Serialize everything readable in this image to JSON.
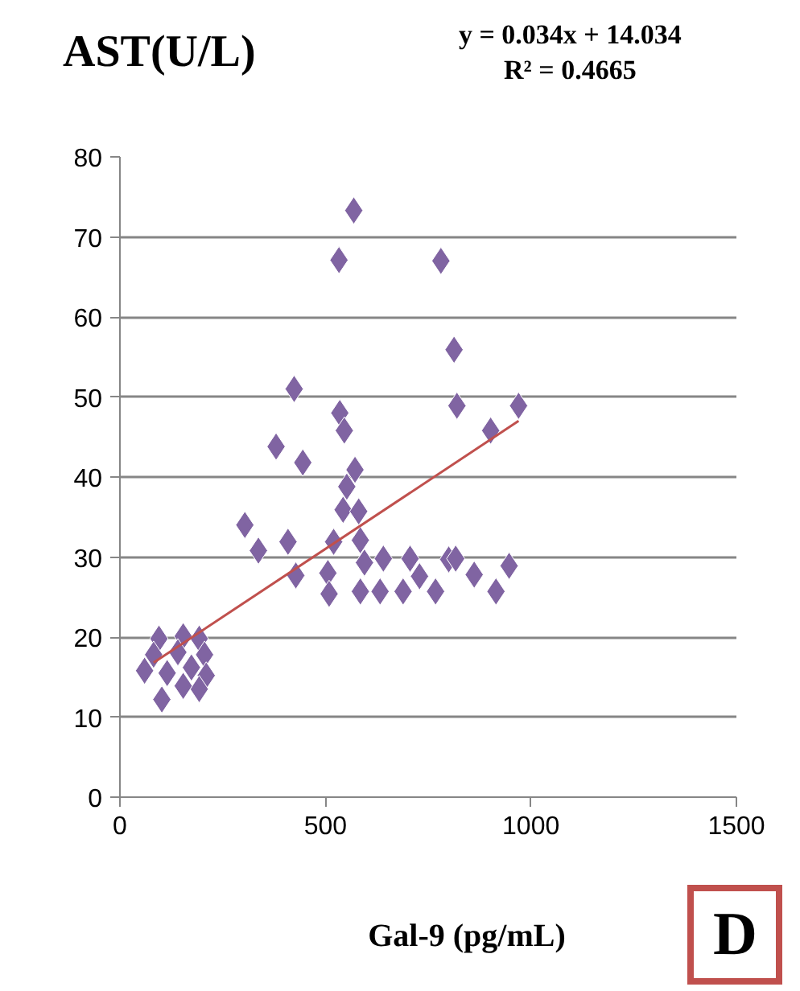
{
  "chart_data": {
    "type": "scatter",
    "ylabel": "AST(U/L)",
    "xlabel": "Gal-9 (pg/mL)",
    "annotations": [
      "y = 0.034x + 14.034",
      "R² = 0.4665",
      "D"
    ],
    "xlim": [
      0,
      1500
    ],
    "xticks": [
      0,
      500,
      1000,
      1500
    ],
    "ylim": [
      0,
      80
    ],
    "yticks": [
      0,
      10,
      20,
      30,
      40,
      50,
      60,
      70,
      80
    ],
    "grid": "y",
    "series": [
      {
        "marker": "diamond",
        "color": "#8064a2",
        "x": [
          569,
          533,
          781,
          813,
          424,
          535,
          546,
          380,
          445,
          572,
          552,
          543,
          581,
          304,
          337,
          409,
          428,
          520,
          585,
          595,
          506,
          509,
          585,
          641,
          633,
          689,
          706,
          729,
          768,
          800,
          820,
          970,
          902,
          817,
          862,
          947,
          915,
          95,
          154,
          193,
          82,
          141,
          206,
          60,
          115,
          174,
          210,
          102,
          193,
          154
        ],
        "values": [
          73.3,
          67.1,
          67,
          55.9,
          51,
          48,
          45.8,
          43.8,
          41.8,
          40.9,
          38.8,
          35.9,
          35.7,
          34,
          30.8,
          31.9,
          27.7,
          31.9,
          32.1,
          29.3,
          28,
          25.4,
          25.7,
          29.8,
          25.7,
          25.7,
          29.8,
          27.6,
          25.7,
          29.7,
          48.9,
          48.9,
          45.8,
          29.8,
          27.8,
          28.9,
          25.7,
          19.8,
          20.1,
          19.8,
          17.8,
          18.1,
          17.8,
          15.8,
          15.5,
          16.2,
          15.2,
          12.2,
          13.5,
          13.9
        ]
      },
      {
        "type": "line",
        "color": "#c0504d",
        "x": [
          82,
          970
        ],
        "values": [
          16.8,
          47.0
        ]
      }
    ]
  }
}
